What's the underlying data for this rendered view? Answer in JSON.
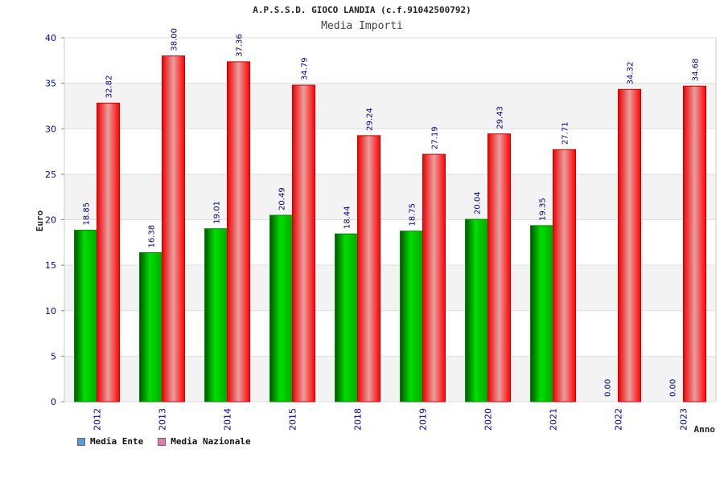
{
  "chart_data": {
    "type": "bar",
    "title": "A.P.S.S.D. GIOCO LANDIA (c.f.91042500792)",
    "subtitle": "Media Importi",
    "xlabel": "Anno",
    "ylabel": "Euro",
    "ylim": [
      0,
      40
    ],
    "yticks": [
      0,
      5,
      10,
      15,
      20,
      25,
      30,
      35,
      40
    ],
    "grid": true,
    "legend_position": "bottom-left",
    "categories": [
      "2012",
      "2013",
      "2014",
      "2015",
      "2018",
      "2019",
      "2020",
      "2021",
      "2022",
      "2023"
    ],
    "series": [
      {
        "name": "Media Ente",
        "color": "#00cc00",
        "legend_color": "#5b9bd5",
        "values": [
          18.85,
          16.38,
          19.01,
          20.49,
          18.44,
          18.75,
          20.04,
          19.35,
          0.0,
          0.0
        ],
        "labels": [
          "18.85",
          "16.38",
          "19.01",
          "20.49",
          "18.44",
          "18.75",
          "20.04",
          "19.35",
          "0.00",
          "0.00"
        ]
      },
      {
        "name": "Media Nazionale",
        "color": "#ff0000",
        "legend_color": "#e07ab0",
        "values": [
          32.82,
          38.0,
          37.36,
          34.79,
          29.24,
          27.19,
          29.43,
          27.71,
          34.32,
          34.68
        ],
        "labels": [
          "32.82",
          "38.00",
          "37.36",
          "34.79",
          "29.24",
          "27.19",
          "29.43",
          "27.71",
          "34.32",
          "34.68"
        ]
      }
    ]
  }
}
